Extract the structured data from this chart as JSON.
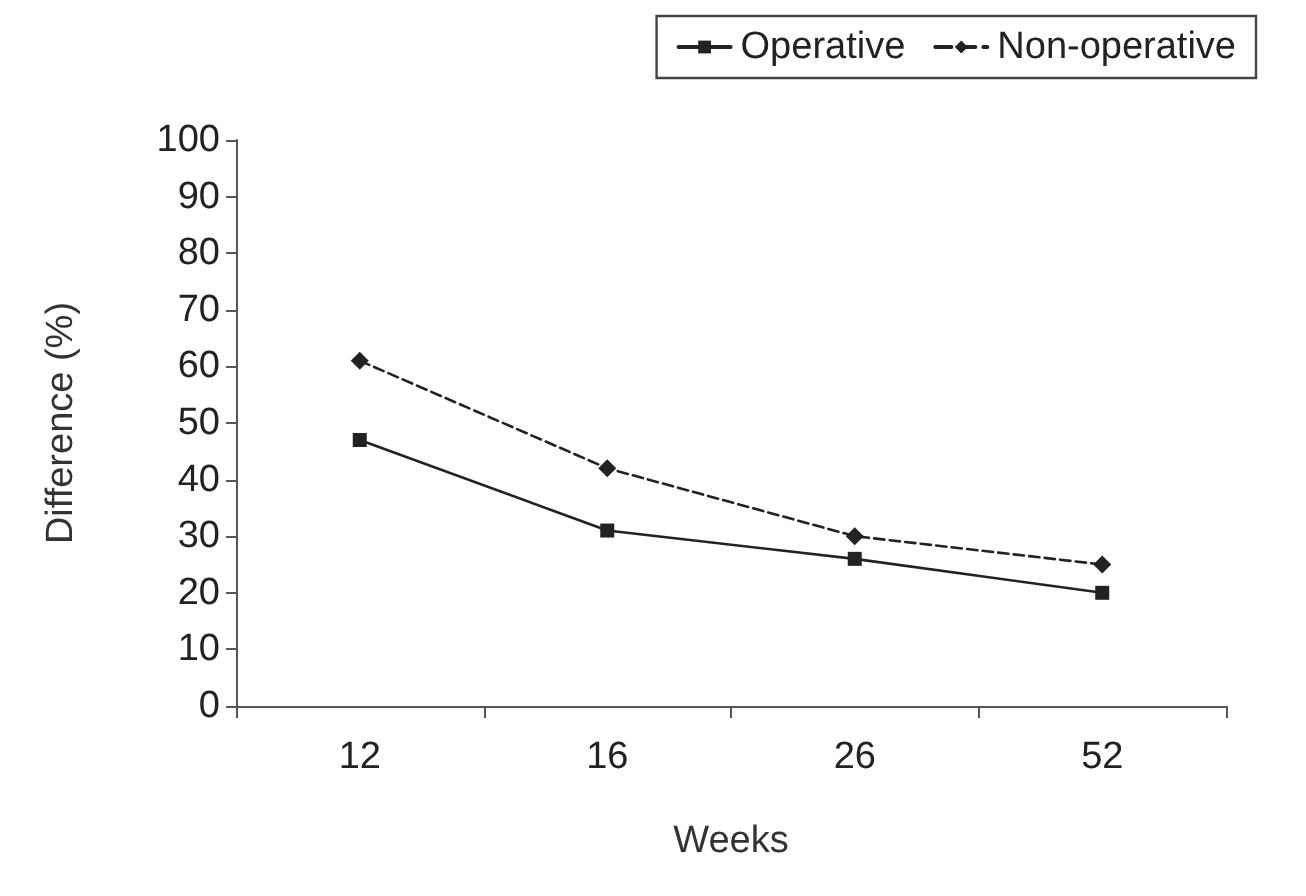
{
  "chart_data": {
    "type": "line",
    "xlabel": "Weeks",
    "ylabel": "Difference (%)",
    "categories": [
      "12",
      "16",
      "26",
      "52"
    ],
    "series": [
      {
        "name": "Operative",
        "color": "#222222",
        "values": [
          47,
          31,
          26,
          20
        ],
        "marker": "square",
        "line_style": "solid"
      },
      {
        "name": "Non-operative",
        "color": "#222222",
        "values": [
          61,
          42,
          30,
          25
        ],
        "marker": "diamond",
        "line_style": "dashed"
      }
    ],
    "ylim": [
      0,
      100
    ],
    "yticks": [
      0,
      10,
      20,
      30,
      40,
      50,
      60,
      70,
      80,
      90,
      100
    ],
    "grid": false,
    "legend": "top right"
  }
}
